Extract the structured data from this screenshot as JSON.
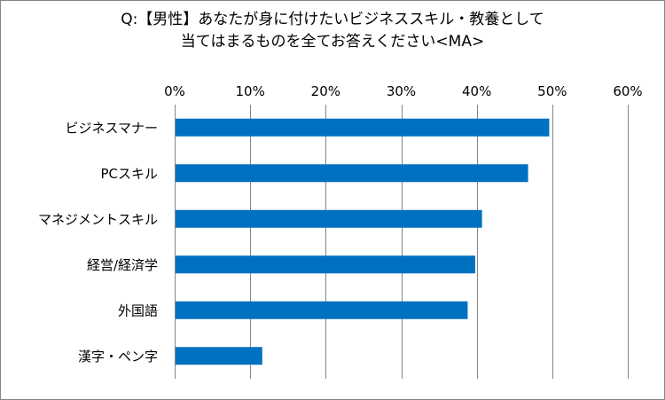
{
  "title": {
    "line1": "Q:【男性】あなたが身に付けたいビジネススキル・教養として",
    "line2": "当てはまるものを全てお答えください<MA>"
  },
  "colors": {
    "bar": "#0070C0",
    "grid": "#868686",
    "axis": "#868686"
  },
  "chart_data": {
    "type": "bar",
    "orientation": "horizontal",
    "categories": [
      "ビジネスマナー",
      "PCスキル",
      "マネジメントスキル",
      "経営/経済学",
      "外国語",
      "漢字・ペン字"
    ],
    "values": [
      49.6,
      46.8,
      40.7,
      39.8,
      38.8,
      11.6
    ],
    "unit": "%",
    "xlim": [
      0,
      60
    ],
    "xticks": [
      0,
      10,
      20,
      30,
      40,
      50,
      60
    ],
    "xtick_labels": [
      "0%",
      "10%",
      "20%",
      "30%",
      "40%",
      "50%",
      "60%"
    ],
    "xaxis_position": "top",
    "grid": true,
    "legend": "none"
  }
}
